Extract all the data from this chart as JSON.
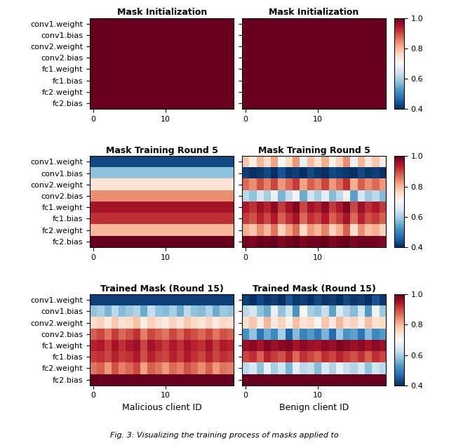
{
  "ytick_labels": [
    "conv1.weight",
    "conv1.bias",
    "conv2.weight",
    "conv2.bias",
    "fc1.weight",
    "fc1.bias",
    "fc2.weight",
    "fc2.bias"
  ],
  "n_malicious": 20,
  "n_benign": 20,
  "n_layers": 8,
  "vmin": 0.4,
  "vmax": 1.0,
  "cmap": "RdBu_r",
  "titles": [
    [
      "Mask Initialization",
      "Mask Initialization"
    ],
    [
      "Mask Training Round 5",
      "Mask Training Round 5"
    ],
    [
      "Trained Mask (Round 15)",
      "Trained Mask (Round 15)"
    ]
  ],
  "xlabels": [
    "Malicious client ID",
    "Benign client ID"
  ],
  "figsize": [
    6.4,
    6.38
  ],
  "mal_init": [
    [
      1.0,
      1.0,
      1.0,
      1.0,
      1.0,
      1.0,
      1.0,
      1.0,
      1.0,
      1.0,
      1.0,
      1.0,
      1.0,
      1.0,
      1.0,
      1.0,
      1.0,
      1.0,
      1.0,
      1.0
    ],
    [
      1.0,
      1.0,
      1.0,
      1.0,
      1.0,
      1.0,
      1.0,
      1.0,
      1.0,
      1.0,
      1.0,
      1.0,
      1.0,
      1.0,
      1.0,
      1.0,
      1.0,
      1.0,
      1.0,
      1.0
    ],
    [
      1.0,
      1.0,
      1.0,
      1.0,
      1.0,
      1.0,
      1.0,
      1.0,
      1.0,
      1.0,
      1.0,
      1.0,
      1.0,
      1.0,
      1.0,
      1.0,
      1.0,
      1.0,
      1.0,
      1.0
    ],
    [
      1.0,
      1.0,
      1.0,
      1.0,
      1.0,
      1.0,
      1.0,
      1.0,
      1.0,
      1.0,
      1.0,
      1.0,
      1.0,
      1.0,
      1.0,
      1.0,
      1.0,
      1.0,
      1.0,
      1.0
    ],
    [
      1.0,
      1.0,
      1.0,
      1.0,
      1.0,
      1.0,
      1.0,
      1.0,
      1.0,
      1.0,
      1.0,
      1.0,
      1.0,
      1.0,
      1.0,
      1.0,
      1.0,
      1.0,
      1.0,
      1.0
    ],
    [
      1.0,
      1.0,
      1.0,
      1.0,
      1.0,
      1.0,
      1.0,
      1.0,
      1.0,
      1.0,
      1.0,
      1.0,
      1.0,
      1.0,
      1.0,
      1.0,
      1.0,
      1.0,
      1.0,
      1.0
    ],
    [
      1.0,
      1.0,
      1.0,
      1.0,
      1.0,
      1.0,
      1.0,
      1.0,
      1.0,
      1.0,
      1.0,
      1.0,
      1.0,
      1.0,
      1.0,
      1.0,
      1.0,
      1.0,
      1.0,
      1.0
    ],
    [
      1.0,
      1.0,
      1.0,
      1.0,
      1.0,
      1.0,
      1.0,
      1.0,
      1.0,
      1.0,
      1.0,
      1.0,
      1.0,
      1.0,
      1.0,
      1.0,
      1.0,
      1.0,
      1.0,
      1.0
    ]
  ],
  "ben_init": [
    [
      1.0,
      1.0,
      1.0,
      1.0,
      1.0,
      1.0,
      1.0,
      1.0,
      1.0,
      1.0,
      1.0,
      1.0,
      1.0,
      1.0,
      1.0,
      1.0,
      1.0,
      1.0,
      1.0,
      1.0
    ],
    [
      1.0,
      1.0,
      1.0,
      1.0,
      1.0,
      1.0,
      1.0,
      1.0,
      1.0,
      1.0,
      1.0,
      1.0,
      1.0,
      1.0,
      1.0,
      1.0,
      1.0,
      1.0,
      1.0,
      1.0
    ],
    [
      1.0,
      1.0,
      1.0,
      1.0,
      1.0,
      1.0,
      1.0,
      1.0,
      1.0,
      1.0,
      1.0,
      1.0,
      1.0,
      1.0,
      1.0,
      1.0,
      1.0,
      1.0,
      1.0,
      1.0
    ],
    [
      1.0,
      1.0,
      1.0,
      1.0,
      1.0,
      1.0,
      1.0,
      1.0,
      1.0,
      1.0,
      1.0,
      1.0,
      1.0,
      1.0,
      1.0,
      1.0,
      1.0,
      1.0,
      1.0,
      1.0
    ],
    [
      1.0,
      1.0,
      1.0,
      1.0,
      1.0,
      1.0,
      1.0,
      1.0,
      1.0,
      1.0,
      1.0,
      1.0,
      1.0,
      1.0,
      1.0,
      1.0,
      1.0,
      1.0,
      1.0,
      1.0
    ],
    [
      1.0,
      1.0,
      1.0,
      1.0,
      1.0,
      1.0,
      1.0,
      1.0,
      1.0,
      1.0,
      1.0,
      1.0,
      1.0,
      1.0,
      1.0,
      1.0,
      1.0,
      1.0,
      1.0,
      1.0
    ],
    [
      1.0,
      1.0,
      1.0,
      1.0,
      1.0,
      1.0,
      1.0,
      1.0,
      1.0,
      1.0,
      1.0,
      1.0,
      1.0,
      1.0,
      1.0,
      1.0,
      1.0,
      1.0,
      1.0,
      1.0
    ],
    [
      1.0,
      1.0,
      1.0,
      1.0,
      1.0,
      1.0,
      1.0,
      1.0,
      1.0,
      1.0,
      1.0,
      1.0,
      1.0,
      1.0,
      1.0,
      1.0,
      1.0,
      1.0,
      1.0,
      1.0
    ]
  ],
  "mal_round5": [
    [
      0.43,
      0.43,
      0.43,
      0.43,
      0.43,
      0.43,
      0.43,
      0.43,
      0.43,
      0.43,
      0.43,
      0.43,
      0.43,
      0.43,
      0.43,
      0.43,
      0.43,
      0.43,
      0.43,
      0.43
    ],
    [
      0.58,
      0.58,
      0.58,
      0.58,
      0.58,
      0.58,
      0.58,
      0.58,
      0.58,
      0.58,
      0.58,
      0.58,
      0.58,
      0.58,
      0.58,
      0.58,
      0.58,
      0.58,
      0.58,
      0.58
    ],
    [
      0.74,
      0.74,
      0.74,
      0.74,
      0.74,
      0.74,
      0.74,
      0.74,
      0.74,
      0.74,
      0.74,
      0.74,
      0.74,
      0.74,
      0.74,
      0.74,
      0.74,
      0.74,
      0.74,
      0.74
    ],
    [
      0.84,
      0.84,
      0.84,
      0.84,
      0.84,
      0.84,
      0.84,
      0.84,
      0.84,
      0.84,
      0.84,
      0.84,
      0.84,
      0.84,
      0.84,
      0.84,
      0.84,
      0.84,
      0.84,
      0.84
    ],
    [
      0.95,
      0.95,
      0.95,
      0.95,
      0.95,
      0.95,
      0.95,
      0.95,
      0.95,
      0.95,
      0.95,
      0.95,
      0.95,
      0.95,
      0.95,
      0.95,
      0.95,
      0.95,
      0.95,
      0.95
    ],
    [
      0.92,
      0.92,
      0.92,
      0.92,
      0.92,
      0.92,
      0.92,
      0.92,
      0.92,
      0.92,
      0.92,
      0.92,
      0.92,
      0.92,
      0.92,
      0.92,
      0.92,
      0.92,
      0.92,
      0.92
    ],
    [
      0.8,
      0.8,
      0.8,
      0.8,
      0.8,
      0.8,
      0.8,
      0.8,
      0.8,
      0.8,
      0.8,
      0.8,
      0.8,
      0.8,
      0.8,
      0.8,
      0.8,
      0.8,
      0.8,
      0.8
    ],
    [
      1.0,
      1.0,
      1.0,
      1.0,
      1.0,
      1.0,
      1.0,
      1.0,
      1.0,
      1.0,
      1.0,
      1.0,
      1.0,
      1.0,
      1.0,
      1.0,
      1.0,
      1.0,
      1.0,
      1.0
    ]
  ],
  "ben_round5": [
    [
      0.78,
      0.72,
      0.8,
      0.75,
      0.82,
      0.7,
      0.76,
      0.83,
      0.68,
      0.79,
      0.74,
      0.81,
      0.71,
      0.77,
      0.84,
      0.69,
      0.8,
      0.73,
      0.78,
      0.72
    ],
    [
      0.42,
      0.4,
      0.41,
      0.43,
      0.4,
      0.44,
      0.41,
      0.42,
      0.4,
      0.43,
      0.41,
      0.4,
      0.43,
      0.42,
      0.41,
      0.4,
      0.43,
      0.41,
      0.42,
      0.4
    ],
    [
      0.87,
      0.84,
      0.89,
      0.85,
      0.9,
      0.83,
      0.87,
      0.91,
      0.82,
      0.88,
      0.85,
      0.9,
      0.83,
      0.87,
      0.92,
      0.81,
      0.88,
      0.84,
      0.87,
      0.83
    ],
    [
      0.62,
      0.58,
      0.65,
      0.6,
      0.68,
      0.56,
      0.63,
      0.7,
      0.55,
      0.64,
      0.6,
      0.67,
      0.57,
      0.62,
      0.71,
      0.54,
      0.65,
      0.59,
      0.62,
      0.57
    ],
    [
      0.94,
      0.92,
      0.96,
      0.93,
      0.97,
      0.91,
      0.95,
      0.98,
      0.9,
      0.95,
      0.93,
      0.97,
      0.91,
      0.94,
      0.98,
      0.9,
      0.96,
      0.92,
      0.94,
      0.91
    ],
    [
      0.91,
      0.89,
      0.93,
      0.9,
      0.94,
      0.88,
      0.92,
      0.95,
      0.87,
      0.92,
      0.9,
      0.94,
      0.88,
      0.91,
      0.95,
      0.87,
      0.93,
      0.89,
      0.91,
      0.88
    ],
    [
      0.81,
      0.78,
      0.84,
      0.8,
      0.86,
      0.77,
      0.82,
      0.87,
      0.76,
      0.83,
      0.8,
      0.85,
      0.77,
      0.81,
      0.88,
      0.75,
      0.84,
      0.79,
      0.81,
      0.77
    ],
    [
      0.99,
      0.98,
      1.0,
      0.99,
      1.0,
      0.98,
      0.99,
      1.0,
      0.98,
      0.99,
      0.99,
      1.0,
      0.98,
      0.99,
      1.0,
      0.98,
      0.99,
      0.99,
      0.99,
      0.98
    ]
  ],
  "mal_round15": [
    [
      0.42,
      0.42,
      0.42,
      0.42,
      0.42,
      0.42,
      0.42,
      0.42,
      0.42,
      0.42,
      0.42,
      0.42,
      0.42,
      0.42,
      0.42,
      0.42,
      0.42,
      0.42,
      0.42,
      0.42
    ],
    [
      0.58,
      0.6,
      0.56,
      0.62,
      0.57,
      0.59,
      0.61,
      0.55,
      0.63,
      0.58,
      0.57,
      0.6,
      0.55,
      0.62,
      0.58,
      0.57,
      0.61,
      0.55,
      0.59,
      0.58
    ],
    [
      0.75,
      0.77,
      0.73,
      0.78,
      0.74,
      0.76,
      0.79,
      0.72,
      0.77,
      0.75,
      0.73,
      0.77,
      0.74,
      0.78,
      0.76,
      0.74,
      0.77,
      0.73,
      0.76,
      0.75
    ],
    [
      0.88,
      0.9,
      0.86,
      0.91,
      0.87,
      0.89,
      0.92,
      0.85,
      0.9,
      0.88,
      0.86,
      0.9,
      0.87,
      0.91,
      0.89,
      0.87,
      0.9,
      0.86,
      0.89,
      0.88
    ],
    [
      0.93,
      0.94,
      0.91,
      0.95,
      0.92,
      0.94,
      0.96,
      0.9,
      0.95,
      0.93,
      0.91,
      0.94,
      0.92,
      0.95,
      0.93,
      0.92,
      0.95,
      0.91,
      0.94,
      0.93
    ],
    [
      0.91,
      0.92,
      0.9,
      0.93,
      0.91,
      0.92,
      0.94,
      0.89,
      0.93,
      0.91,
      0.9,
      0.93,
      0.91,
      0.94,
      0.92,
      0.9,
      0.93,
      0.9,
      0.92,
      0.91
    ],
    [
      0.86,
      0.88,
      0.83,
      0.89,
      0.85,
      0.87,
      0.9,
      0.82,
      0.88,
      0.86,
      0.83,
      0.87,
      0.85,
      0.89,
      0.87,
      0.84,
      0.88,
      0.83,
      0.86,
      0.85
    ],
    [
      1.0,
      1.0,
      1.0,
      1.0,
      1.0,
      1.0,
      1.0,
      1.0,
      1.0,
      1.0,
      1.0,
      1.0,
      1.0,
      1.0,
      1.0,
      1.0,
      1.0,
      1.0,
      1.0,
      1.0
    ]
  ],
  "ben_round15": [
    [
      0.42,
      0.4,
      0.43,
      0.41,
      0.42,
      0.4,
      0.44,
      0.41,
      0.42,
      0.4,
      0.43,
      0.41,
      0.42,
      0.4,
      0.43,
      0.41,
      0.42,
      0.4,
      0.44,
      0.41
    ],
    [
      0.62,
      0.65,
      0.58,
      0.55,
      0.68,
      0.58,
      0.64,
      0.52,
      0.7,
      0.6,
      0.58,
      0.63,
      0.54,
      0.66,
      0.61,
      0.57,
      0.65,
      0.53,
      0.69,
      0.59
    ],
    [
      0.75,
      0.78,
      0.72,
      0.8,
      0.73,
      0.77,
      0.71,
      0.79,
      0.74,
      0.76,
      0.7,
      0.78,
      0.73,
      0.8,
      0.75,
      0.77,
      0.72,
      0.79,
      0.74,
      0.76
    ],
    [
      0.52,
      0.58,
      0.48,
      0.55,
      0.51,
      0.6,
      0.46,
      0.57,
      0.5,
      0.53,
      0.49,
      0.56,
      0.47,
      0.59,
      0.52,
      0.54,
      0.48,
      0.57,
      0.51,
      0.53
    ],
    [
      0.96,
      0.97,
      0.95,
      0.98,
      0.96,
      0.97,
      0.98,
      0.95,
      0.97,
      0.96,
      0.95,
      0.97,
      0.96,
      0.98,
      0.97,
      0.96,
      0.97,
      0.95,
      0.97,
      0.96
    ],
    [
      0.9,
      0.92,
      0.88,
      0.93,
      0.91,
      0.89,
      0.93,
      0.87,
      0.92,
      0.9,
      0.88,
      0.92,
      0.9,
      0.93,
      0.91,
      0.89,
      0.92,
      0.88,
      0.92,
      0.9
    ],
    [
      0.62,
      0.65,
      0.58,
      0.68,
      0.6,
      0.64,
      0.56,
      0.67,
      0.62,
      0.63,
      0.57,
      0.66,
      0.61,
      0.68,
      0.63,
      0.61,
      0.65,
      0.58,
      0.64,
      0.62
    ],
    [
      1.0,
      1.0,
      1.0,
      1.0,
      1.0,
      1.0,
      1.0,
      1.0,
      1.0,
      1.0,
      1.0,
      1.0,
      1.0,
      1.0,
      1.0,
      1.0,
      1.0,
      1.0,
      1.0,
      1.0
    ]
  ]
}
